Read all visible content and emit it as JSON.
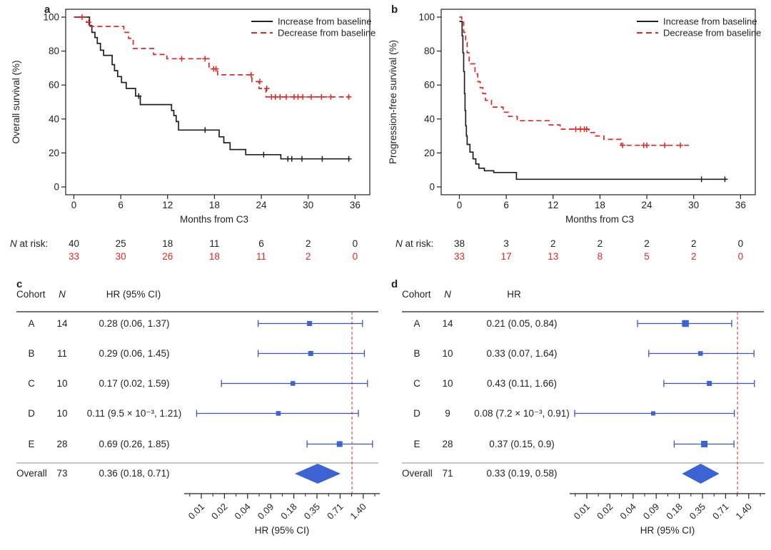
{
  "figure": {
    "background": "#ffffff",
    "colors": {
      "text": "#231f20",
      "black_series": "#231f20",
      "red_series": "#e02722",
      "forest_line": "#3b55c8",
      "forest_marker": "#3b63d3",
      "refline": "#df4c3c",
      "rule_dark": "#231f20",
      "rule_gray": "#8c8c8c"
    }
  },
  "chart_data": [
    {
      "panel": "a",
      "type": "km",
      "panel_label": "a",
      "ylabel": "Overall survival (%)",
      "xlabel": "Months from C3",
      "xticks": [
        0,
        6,
        12,
        18,
        24,
        30,
        36
      ],
      "yticks": [
        0,
        20,
        40,
        60,
        80,
        100
      ],
      "xlim": [
        -1,
        37.5
      ],
      "ylim": [
        0,
        100
      ],
      "legend_position": "top-right",
      "grid": false,
      "n_at_risk_label": "N at risk:",
      "series": [
        {
          "name": "Increase from baseline",
          "style": "solid",
          "color": "black_series",
          "steps": [
            [
              0,
              100
            ],
            [
              2,
              100
            ],
            [
              2,
              95
            ],
            [
              2.3,
              95
            ],
            [
              2.3,
              91
            ],
            [
              2.7,
              91
            ],
            [
              2.7,
              88
            ],
            [
              3,
              88
            ],
            [
              3,
              84.5
            ],
            [
              3.4,
              84.5
            ],
            [
              3.4,
              80.5
            ],
            [
              3.8,
              80.5
            ],
            [
              3.8,
              77.5
            ],
            [
              4.9,
              77.5
            ],
            [
              4.9,
              72
            ],
            [
              5.2,
              72
            ],
            [
              5.2,
              68.5
            ],
            [
              5.6,
              68.5
            ],
            [
              5.6,
              65
            ],
            [
              6.1,
              65
            ],
            [
              6.1,
              61.5
            ],
            [
              6.7,
              61.5
            ],
            [
              6.7,
              58
            ],
            [
              7.9,
              58
            ],
            [
              7.9,
              53.5
            ],
            [
              8.5,
              53.5
            ],
            [
              8.5,
              48.5
            ],
            [
              12.5,
              48.5
            ],
            [
              12.5,
              45
            ],
            [
              12.8,
              45
            ],
            [
              12.8,
              42
            ],
            [
              13.1,
              42
            ],
            [
              13.1,
              38.5
            ],
            [
              13.4,
              38.5
            ],
            [
              13.4,
              33.5
            ],
            [
              18.6,
              33.5
            ],
            [
              18.6,
              29.5
            ],
            [
              19.2,
              29.5
            ],
            [
              19.2,
              26
            ],
            [
              20,
              26
            ],
            [
              20,
              22
            ],
            [
              22,
              22
            ],
            [
              22,
              19
            ],
            [
              26.5,
              19
            ],
            [
              26.5,
              16.5
            ],
            [
              35.3,
              16.5
            ]
          ],
          "censors": [
            [
              8.3,
              53.5
            ],
            [
              16.8,
              33.5
            ],
            [
              24.3,
              19
            ],
            [
              27.4,
              16.5
            ],
            [
              27.9,
              16.5
            ],
            [
              29.2,
              16.5
            ],
            [
              31.8,
              16.5
            ],
            [
              35.2,
              16.5
            ]
          ],
          "n_at_risk": [
            40,
            25,
            18,
            11,
            6,
            2,
            0
          ]
        },
        {
          "name": "Decrease from baseline",
          "style": "dashed",
          "color": "red_series",
          "steps": [
            [
              0,
              100
            ],
            [
              1.6,
              100
            ],
            [
              1.6,
              97
            ],
            [
              2.1,
              97
            ],
            [
              2.1,
              94.5
            ],
            [
              6.4,
              94.5
            ],
            [
              6.4,
              91
            ],
            [
              7,
              91
            ],
            [
              7,
              87.5
            ],
            [
              7.6,
              87.5
            ],
            [
              7.6,
              81.5
            ],
            [
              10.2,
              81.5
            ],
            [
              10.2,
              78
            ],
            [
              11.9,
              78
            ],
            [
              11.9,
              75.5
            ],
            [
              17.3,
              75.5
            ],
            [
              17.3,
              69.5
            ],
            [
              18.4,
              69.5
            ],
            [
              18.4,
              66
            ],
            [
              22.8,
              66
            ],
            [
              22.8,
              62
            ],
            [
              23.7,
              62
            ],
            [
              23.7,
              58
            ],
            [
              24.6,
              58
            ],
            [
              24.6,
              53
            ],
            [
              35.3,
              53
            ]
          ],
          "censors": [
            [
              1.05,
              100
            ],
            [
              1.9,
              97
            ],
            [
              13.8,
              75.5
            ],
            [
              16.8,
              75.5
            ],
            [
              17.9,
              69.5
            ],
            [
              18.2,
              69.5
            ],
            [
              22.7,
              66
            ],
            [
              23.8,
              62
            ],
            [
              24.7,
              58
            ],
            [
              25.3,
              53
            ],
            [
              25.8,
              53
            ],
            [
              26.4,
              53
            ],
            [
              27.2,
              53
            ],
            [
              28.2,
              53
            ],
            [
              28.7,
              53
            ],
            [
              29.3,
              53
            ],
            [
              30.4,
              53
            ],
            [
              31.7,
              53
            ],
            [
              32.9,
              53
            ],
            [
              35.2,
              53
            ]
          ],
          "n_at_risk": [
            33,
            30,
            26,
            18,
            11,
            2,
            0
          ]
        }
      ]
    },
    {
      "panel": "b",
      "type": "km",
      "panel_label": "b",
      "ylabel": "Progression-free survival (%)",
      "xlabel": "Months from C3",
      "xticks": [
        0,
        6,
        12,
        18,
        24,
        30,
        36
      ],
      "yticks": [
        0,
        20,
        40,
        60,
        80,
        100
      ],
      "xlim": [
        -2,
        37.5
      ],
      "ylim": [
        0,
        100
      ],
      "legend_position": "top-right",
      "grid": false,
      "n_at_risk_label": "N at risk:",
      "series": [
        {
          "name": "Increase from baseline",
          "style": "solid",
          "color": "black_series",
          "steps": [
            [
              0,
              97.5
            ],
            [
              0.35,
              97.5
            ],
            [
              0.35,
              89
            ],
            [
              0.45,
              89
            ],
            [
              0.45,
              79
            ],
            [
              0.55,
              79
            ],
            [
              0.55,
              68
            ],
            [
              0.65,
              68
            ],
            [
              0.65,
              55
            ],
            [
              0.72,
              55
            ],
            [
              0.72,
              45
            ],
            [
              0.8,
              45
            ],
            [
              0.8,
              36
            ],
            [
              0.9,
              36
            ],
            [
              0.9,
              30
            ],
            [
              1,
              30
            ],
            [
              1,
              25
            ],
            [
              1.35,
              25
            ],
            [
              1.35,
              20.5
            ],
            [
              1.75,
              20.5
            ],
            [
              1.75,
              16.5
            ],
            [
              2.1,
              16.5
            ],
            [
              2.1,
              13.5
            ],
            [
              2.5,
              13.5
            ],
            [
              2.5,
              11
            ],
            [
              3.2,
              11
            ],
            [
              3.2,
              9.5
            ],
            [
              4.4,
              9.5
            ],
            [
              4.4,
              8.5
            ],
            [
              7.3,
              8.5
            ],
            [
              7.3,
              4.5
            ],
            [
              34.2,
              4.5
            ]
          ],
          "censors": [
            [
              31,
              4.5
            ],
            [
              34,
              4.5
            ]
          ],
          "n_at_risk": [
            38,
            3,
            2,
            2,
            2,
            2,
            0
          ]
        },
        {
          "name": "Decrease from baseline",
          "style": "dashed",
          "color": "red_series",
          "steps": [
            [
              0,
              100
            ],
            [
              0.3,
              100
            ],
            [
              0.3,
              97
            ],
            [
              0.55,
              97
            ],
            [
              0.55,
              91
            ],
            [
              0.8,
              91
            ],
            [
              0.8,
              85
            ],
            [
              1,
              85
            ],
            [
              1,
              79
            ],
            [
              1.25,
              79
            ],
            [
              1.25,
              72.5
            ],
            [
              2,
              72.5
            ],
            [
              2,
              66.5
            ],
            [
              2.35,
              66.5
            ],
            [
              2.35,
              62
            ],
            [
              2.65,
              62
            ],
            [
              2.65,
              58.5
            ],
            [
              3,
              58.5
            ],
            [
              3,
              55
            ],
            [
              3.35,
              55
            ],
            [
              3.35,
              51
            ],
            [
              4.1,
              51
            ],
            [
              4.1,
              47
            ],
            [
              5.6,
              47
            ],
            [
              5.6,
              44
            ],
            [
              6.3,
              44
            ],
            [
              6.3,
              41.5
            ],
            [
              7.4,
              41.5
            ],
            [
              7.4,
              39
            ],
            [
              11.5,
              39
            ],
            [
              11.5,
              36.5
            ],
            [
              12.9,
              36.5
            ],
            [
              12.9,
              34
            ],
            [
              16.6,
              34
            ],
            [
              16.6,
              32
            ],
            [
              17.3,
              32
            ],
            [
              17.3,
              30
            ],
            [
              18.5,
              30
            ],
            [
              18.5,
              28
            ],
            [
              20.7,
              28
            ],
            [
              20.7,
              24.5
            ],
            [
              29.4,
              24.5
            ]
          ],
          "censors": [
            [
              14.9,
              34
            ],
            [
              15.5,
              34
            ],
            [
              16,
              34
            ],
            [
              16.3,
              34
            ],
            [
              20.9,
              24.5
            ],
            [
              23.6,
              24.5
            ],
            [
              24,
              24.5
            ],
            [
              26.3,
              24.5
            ],
            [
              28.3,
              24.5
            ]
          ],
          "n_at_risk": [
            33,
            17,
            13,
            8,
            5,
            2,
            0
          ]
        }
      ]
    },
    {
      "panel": "c",
      "type": "forest",
      "panel_label": "c",
      "columns": [
        "Cohort",
        "N",
        "HR (95% CI)"
      ],
      "xlabel": "HR (95% CI)",
      "xtick_labels": [
        "0.01",
        "0.02",
        "0.04",
        "0.09",
        "0.18",
        "0.35",
        "0.71",
        "1.40"
      ],
      "scale": "log2",
      "refline": 1.0,
      "rows": [
        {
          "cohort": "A",
          "n": "14",
          "hr": 0.28,
          "ci": [
            0.06,
            1.37
          ],
          "hr_text": "0.28 (0.06, 1.37)",
          "marker": 7
        },
        {
          "cohort": "B",
          "n": "11",
          "hr": 0.29,
          "ci": [
            0.06,
            1.45
          ],
          "hr_text": "0.29 (0.06, 1.45)",
          "marker": 7
        },
        {
          "cohort": "C",
          "n": "10",
          "hr": 0.17,
          "ci": [
            0.02,
            1.59
          ],
          "hr_text": "0.17 (0.02, 1.59)",
          "marker": 6.5
        },
        {
          "cohort": "D",
          "n": "10",
          "hr": 0.11,
          "ci": [
            0.0095,
            1.21
          ],
          "hr_text": "0.11 (9.5 × 10⁻³, 1.21)",
          "marker": 6.5
        },
        {
          "cohort": "E",
          "n": "28",
          "hr": 0.69,
          "ci": [
            0.26,
            1.85
          ],
          "hr_text": "0.69 (0.26, 1.85)",
          "marker": 8
        }
      ],
      "overall": {
        "label": "Overall",
        "n": "73",
        "hr": 0.36,
        "ci": [
          0.18,
          0.71
        ],
        "hr_text": "0.36 (0.18, 0.71)"
      }
    },
    {
      "panel": "d",
      "type": "forest",
      "panel_label": "d",
      "columns": [
        "Cohort",
        "N",
        "HR"
      ],
      "xlabel": "HR (95% CI)",
      "xtick_labels": [
        "0.01",
        "0.02",
        "0.04",
        "0.09",
        "0.18",
        "0.35",
        "0.71",
        "1.40"
      ],
      "scale": "log2",
      "refline": 1.0,
      "rows": [
        {
          "cohort": "A",
          "n": "14",
          "hr": 0.21,
          "ci": [
            0.05,
            0.84
          ],
          "hr_text": "0.21 (0.05, 0.84)",
          "marker": 9.5
        },
        {
          "cohort": "B",
          "n": "10",
          "hr": 0.33,
          "ci": [
            0.07,
            1.64
          ],
          "hr_text": "0.33 (0.07, 1.64)",
          "marker": 6.5
        },
        {
          "cohort": "C",
          "n": "10",
          "hr": 0.43,
          "ci": [
            0.11,
            1.66
          ],
          "hr_text": "0.43 (0.11, 1.66)",
          "marker": 7
        },
        {
          "cohort": "D",
          "n": "9",
          "hr": 0.08,
          "ci": [
            0.0072,
            0.91
          ],
          "hr_text": "0.08 (7.2 × 10⁻³, 0.91)",
          "marker": 6
        },
        {
          "cohort": "E",
          "n": "28",
          "hr": 0.37,
          "ci": [
            0.15,
            0.9
          ],
          "hr_text": "0.37 (0.15, 0.9)",
          "marker": 9
        }
      ],
      "overall": {
        "label": "Overall",
        "n": "71",
        "hr": 0.33,
        "ci": [
          0.19,
          0.58
        ],
        "hr_text": "0.33 (0.19, 0.58)"
      }
    }
  ]
}
